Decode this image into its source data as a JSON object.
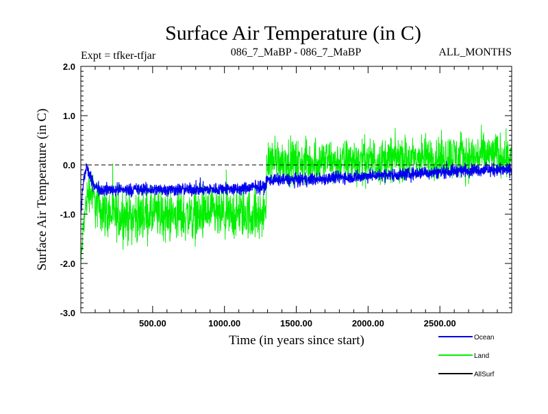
{
  "chart_data": {
    "type": "line",
    "title": "Surface Air Temperature (in C)",
    "subtitle_left": "Expt = tfker-tfjar",
    "subtitle_center": "086_7_MaBP - 086_7_MaBP",
    "subtitle_right": "ALL_MONTHS",
    "xlabel": "Time (in years since start)",
    "ylabel": "Surface Air Temperature (in C)",
    "xlim": [
      0,
      3000
    ],
    "ylim": [
      -3.0,
      2.0
    ],
    "x_ticks": [
      500,
      1000,
      1500,
      2000,
      2500
    ],
    "x_tick_labels": [
      "500.00",
      "1000.00",
      "1500.00",
      "2000.00",
      "2500.00"
    ],
    "y_ticks": [
      2.0,
      1.0,
      0.0,
      -1.0,
      -2.0,
      -3.0
    ],
    "y_tick_labels": [
      "2.0",
      "1.0",
      "0.0",
      "-1.0",
      "-2.0",
      "-3.0"
    ],
    "zero_line": "dashed",
    "grid": false,
    "legend_position": "bottom-right, below plot",
    "series": [
      {
        "name": "Land",
        "color": "#00ee00",
        "x": [
          0,
          10,
          20,
          40,
          60,
          80,
          100,
          150,
          200,
          300,
          400,
          500,
          600,
          700,
          800,
          900,
          1000,
          1100,
          1200,
          1280,
          1300,
          1320,
          1400,
          1500,
          1600,
          1700,
          1800,
          1900,
          2000,
          2100,
          2200,
          2300,
          2400,
          2500,
          2600,
          2700,
          2800,
          2900,
          3000
        ],
        "values": [
          -2.0,
          -1.6,
          -1.2,
          -0.7,
          -0.5,
          -0.6,
          -0.8,
          -0.9,
          -1.0,
          -1.05,
          -1.05,
          -1.0,
          -1.05,
          -1.0,
          -1.05,
          -1.0,
          -1.05,
          -1.0,
          -1.0,
          -1.05,
          0.05,
          0.1,
          0.1,
          0.05,
          0.05,
          0.1,
          0.05,
          0.1,
          0.1,
          0.1,
          0.15,
          0.1,
          0.15,
          0.15,
          0.2,
          0.15,
          0.2,
          0.2,
          0.2
        ],
        "spread": [
          0.3,
          0.45,
          0.5,
          0.55,
          0.6,
          0.65,
          0.7,
          0.75,
          0.75,
          0.75,
          0.75,
          0.75,
          0.75,
          0.75,
          0.75,
          0.75,
          0.75,
          0.75,
          0.75,
          0.75,
          0.65,
          0.65,
          0.65,
          0.65,
          0.65,
          0.65,
          0.65,
          0.65,
          0.65,
          0.65,
          0.65,
          0.65,
          0.65,
          0.65,
          0.65,
          0.65,
          0.65,
          0.65,
          0.65
        ]
      },
      {
        "name": "Ocean",
        "color": "#0000ee",
        "x": [
          0,
          10,
          20,
          40,
          60,
          80,
          100,
          150,
          200,
          300,
          400,
          500,
          600,
          700,
          800,
          900,
          1000,
          1100,
          1200,
          1280,
          1300,
          1320,
          1400,
          1500,
          1600,
          1700,
          1800,
          1900,
          2000,
          2100,
          2200,
          2300,
          2400,
          2500,
          2600,
          2700,
          2800,
          2900,
          3000
        ],
        "values": [
          -1.0,
          -0.6,
          -0.3,
          -0.05,
          -0.2,
          -0.35,
          -0.45,
          -0.5,
          -0.5,
          -0.5,
          -0.5,
          -0.5,
          -0.5,
          -0.5,
          -0.5,
          -0.5,
          -0.48,
          -0.5,
          -0.45,
          -0.45,
          -0.3,
          -0.3,
          -0.3,
          -0.3,
          -0.3,
          -0.28,
          -0.25,
          -0.25,
          -0.22,
          -0.2,
          -0.2,
          -0.18,
          -0.15,
          -0.15,
          -0.12,
          -0.1,
          -0.1,
          -0.1,
          -0.1
        ],
        "spread": [
          0.2,
          0.2,
          0.2,
          0.18,
          0.18,
          0.18,
          0.18,
          0.18,
          0.18,
          0.18,
          0.18,
          0.18,
          0.18,
          0.18,
          0.18,
          0.18,
          0.18,
          0.18,
          0.18,
          0.18,
          0.18,
          0.18,
          0.18,
          0.18,
          0.18,
          0.18,
          0.18,
          0.18,
          0.18,
          0.18,
          0.18,
          0.18,
          0.18,
          0.18,
          0.18,
          0.18,
          0.18,
          0.18,
          0.18
        ]
      },
      {
        "name": "AllSurf",
        "color": "#000000",
        "x": [
          0,
          3000
        ],
        "values": [
          null,
          null
        ]
      }
    ]
  }
}
